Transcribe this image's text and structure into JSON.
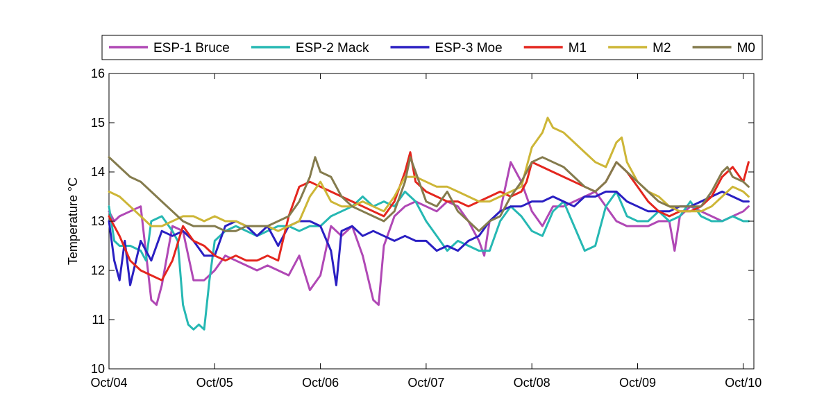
{
  "chart_data": {
    "type": "line",
    "xlabel": "",
    "ylabel": "Temperature °C",
    "ylim": [
      10,
      16
    ],
    "yticks": [
      10,
      11,
      12,
      13,
      14,
      15,
      16
    ],
    "xlim": [
      4,
      10.1
    ],
    "xticks": [
      4,
      5,
      6,
      7,
      8,
      9,
      10
    ],
    "xtick_labels": [
      "Oct/04",
      "Oct/05",
      "Oct/06",
      "Oct/07",
      "Oct/08",
      "Oct/09",
      "Oct/10"
    ],
    "grid": false,
    "legend_position": "top",
    "series": [
      {
        "name": "ESP-1 Bruce",
        "color": "#b048b5",
        "x": [
          4.0,
          4.05,
          4.1,
          4.2,
          4.3,
          4.4,
          4.45,
          4.5,
          4.6,
          4.7,
          4.8,
          4.9,
          5.0,
          5.1,
          5.2,
          5.3,
          5.4,
          5.5,
          5.6,
          5.7,
          5.8,
          5.9,
          6.0,
          6.1,
          6.2,
          6.3,
          6.4,
          6.5,
          6.55,
          6.6,
          6.7,
          6.8,
          6.9,
          7.0,
          7.1,
          7.2,
          7.3,
          7.4,
          7.5,
          7.55,
          7.6,
          7.7,
          7.8,
          7.9,
          8.0,
          8.1,
          8.2,
          8.3,
          8.4,
          8.5,
          8.6,
          8.7,
          8.8,
          8.9,
          9.0,
          9.1,
          9.2,
          9.3,
          9.35,
          9.4,
          9.5,
          9.6,
          9.7,
          9.8,
          9.9,
          10.0,
          10.05
        ],
        "y": [
          13.2,
          13.0,
          13.1,
          13.2,
          13.3,
          11.4,
          11.3,
          11.7,
          12.9,
          12.8,
          11.8,
          11.8,
          12.0,
          12.3,
          12.2,
          12.1,
          12.0,
          12.1,
          12.0,
          11.9,
          12.3,
          11.6,
          11.9,
          12.9,
          12.7,
          12.9,
          12.3,
          11.4,
          11.3,
          12.5,
          13.1,
          13.3,
          13.4,
          13.3,
          13.2,
          13.4,
          13.3,
          13.0,
          12.6,
          12.3,
          13.0,
          13.2,
          14.2,
          13.8,
          13.2,
          12.9,
          13.3,
          13.3,
          13.4,
          13.5,
          13.6,
          13.3,
          13.0,
          12.9,
          12.9,
          12.9,
          13.0,
          13.0,
          12.4,
          13.1,
          13.3,
          13.2,
          13.1,
          13.0,
          13.1,
          13.2,
          13.3
        ]
      },
      {
        "name": "ESP-2 Mack",
        "color": "#26b8b3",
        "x": [
          4.0,
          4.05,
          4.1,
          4.2,
          4.3,
          4.35,
          4.4,
          4.5,
          4.6,
          4.65,
          4.7,
          4.75,
          4.8,
          4.85,
          4.9,
          4.95,
          5.0,
          5.1,
          5.2,
          5.3,
          5.4,
          5.5,
          5.6,
          5.7,
          5.8,
          5.9,
          6.0,
          6.1,
          6.2,
          6.3,
          6.4,
          6.5,
          6.6,
          6.7,
          6.8,
          6.9,
          7.0,
          7.1,
          7.2,
          7.3,
          7.4,
          7.5,
          7.6,
          7.7,
          7.8,
          7.9,
          8.0,
          8.1,
          8.2,
          8.3,
          8.4,
          8.5,
          8.6,
          8.7,
          8.8,
          8.9,
          9.0,
          9.1,
          9.2,
          9.3,
          9.4,
          9.5,
          9.6,
          9.7,
          9.8,
          9.9,
          10.0,
          10.05
        ],
        "y": [
          13.3,
          12.6,
          12.5,
          12.5,
          12.4,
          12.2,
          13.0,
          13.1,
          12.8,
          12.6,
          11.3,
          10.9,
          10.8,
          10.9,
          10.8,
          11.8,
          12.6,
          12.8,
          12.9,
          12.8,
          12.7,
          12.8,
          12.9,
          12.9,
          12.8,
          12.9,
          12.9,
          13.1,
          13.2,
          13.3,
          13.5,
          13.3,
          13.4,
          13.3,
          13.6,
          13.4,
          13.0,
          12.7,
          12.4,
          12.6,
          12.5,
          12.4,
          12.4,
          13.0,
          13.3,
          13.1,
          12.8,
          12.7,
          13.2,
          13.4,
          12.9,
          12.4,
          12.5,
          13.3,
          13.6,
          13.1,
          13.0,
          13.0,
          13.2,
          13.0,
          13.1,
          13.4,
          13.1,
          13.0,
          13.0,
          13.1,
          13.0,
          13.0
        ]
      },
      {
        "name": "ESP-3 Moe",
        "color": "#2a1fc2",
        "x": [
          4.0,
          4.05,
          4.1,
          4.15,
          4.2,
          4.3,
          4.4,
          4.5,
          4.6,
          4.7,
          4.8,
          4.9,
          5.0,
          5.1,
          5.2,
          5.3,
          5.4,
          5.5,
          5.6,
          5.7,
          5.8,
          5.9,
          6.0,
          6.1,
          6.15,
          6.2,
          6.3,
          6.4,
          6.5,
          6.6,
          6.7,
          6.8,
          6.9,
          7.0,
          7.1,
          7.2,
          7.3,
          7.4,
          7.5,
          7.6,
          7.7,
          7.8,
          7.9,
          8.0,
          8.1,
          8.2,
          8.3,
          8.4,
          8.5,
          8.6,
          8.7,
          8.8,
          8.9,
          9.0,
          9.1,
          9.2,
          9.3,
          9.4,
          9.5,
          9.6,
          9.7,
          9.8,
          9.9,
          10.0,
          10.05
        ],
        "y": [
          13.0,
          12.2,
          11.8,
          12.6,
          11.7,
          12.6,
          12.2,
          12.8,
          12.7,
          12.8,
          12.6,
          12.3,
          12.3,
          12.9,
          13.0,
          12.9,
          12.7,
          12.9,
          12.5,
          12.9,
          13.0,
          13.0,
          12.9,
          12.4,
          11.7,
          12.8,
          12.9,
          12.7,
          12.8,
          12.7,
          12.6,
          12.7,
          12.6,
          12.6,
          12.4,
          12.5,
          12.4,
          12.6,
          12.7,
          13.0,
          13.2,
          13.3,
          13.3,
          13.4,
          13.4,
          13.5,
          13.4,
          13.3,
          13.5,
          13.5,
          13.6,
          13.6,
          13.4,
          13.3,
          13.2,
          13.2,
          13.2,
          13.3,
          13.3,
          13.4,
          13.5,
          13.6,
          13.5,
          13.4,
          13.4
        ]
      },
      {
        "name": "M1",
        "color": "#e4261e",
        "x": [
          4.0,
          4.1,
          4.2,
          4.3,
          4.4,
          4.5,
          4.6,
          4.7,
          4.8,
          4.9,
          5.0,
          5.1,
          5.2,
          5.3,
          5.4,
          5.5,
          5.6,
          5.7,
          5.8,
          5.9,
          6.0,
          6.1,
          6.2,
          6.3,
          6.4,
          6.5,
          6.6,
          6.7,
          6.8,
          6.85,
          6.9,
          7.0,
          7.1,
          7.2,
          7.3,
          7.4,
          7.5,
          7.6,
          7.7,
          7.8,
          7.9,
          7.95,
          8.0,
          8.1,
          8.2,
          8.3,
          8.4,
          8.5,
          8.6,
          8.7,
          8.8,
          8.9,
          9.0,
          9.1,
          9.2,
          9.3,
          9.4,
          9.5,
          9.6,
          9.7,
          9.8,
          9.9,
          10.0,
          10.05
        ],
        "y": [
          13.1,
          12.7,
          12.2,
          12.0,
          11.9,
          11.8,
          12.2,
          12.9,
          12.6,
          12.5,
          12.3,
          12.2,
          12.3,
          12.2,
          12.2,
          12.3,
          12.2,
          13.1,
          13.7,
          13.8,
          13.7,
          13.6,
          13.5,
          13.4,
          13.3,
          13.2,
          13.1,
          13.4,
          14.0,
          14.4,
          13.8,
          13.6,
          13.5,
          13.4,
          13.4,
          13.3,
          13.4,
          13.5,
          13.6,
          13.5,
          13.6,
          13.8,
          14.2,
          14.1,
          14.0,
          13.9,
          13.8,
          13.7,
          13.6,
          13.8,
          14.2,
          14.0,
          13.7,
          13.4,
          13.2,
          13.1,
          13.2,
          13.2,
          13.3,
          13.5,
          13.9,
          14.1,
          13.8,
          14.2
        ]
      },
      {
        "name": "M2",
        "color": "#cdb637",
        "x": [
          4.0,
          4.1,
          4.2,
          4.3,
          4.4,
          4.5,
          4.6,
          4.7,
          4.8,
          4.9,
          5.0,
          5.1,
          5.2,
          5.3,
          5.4,
          5.5,
          5.6,
          5.7,
          5.8,
          5.9,
          6.0,
          6.1,
          6.2,
          6.3,
          6.4,
          6.5,
          6.6,
          6.7,
          6.8,
          6.9,
          7.0,
          7.1,
          7.2,
          7.3,
          7.4,
          7.5,
          7.6,
          7.7,
          7.8,
          7.9,
          8.0,
          8.1,
          8.15,
          8.2,
          8.3,
          8.4,
          8.5,
          8.6,
          8.7,
          8.8,
          8.85,
          8.9,
          9.0,
          9.1,
          9.2,
          9.3,
          9.4,
          9.5,
          9.6,
          9.7,
          9.8,
          9.9,
          10.0,
          10.05
        ],
        "y": [
          13.6,
          13.5,
          13.3,
          13.1,
          12.9,
          12.9,
          13.0,
          13.1,
          13.1,
          13.0,
          13.1,
          13.0,
          13.0,
          12.9,
          12.9,
          12.9,
          12.8,
          12.9,
          13.0,
          13.5,
          13.8,
          13.4,
          13.3,
          13.3,
          13.4,
          13.3,
          13.2,
          13.5,
          13.9,
          13.9,
          13.8,
          13.7,
          13.7,
          13.6,
          13.5,
          13.4,
          13.4,
          13.5,
          13.6,
          13.7,
          14.5,
          14.8,
          15.1,
          14.9,
          14.8,
          14.6,
          14.4,
          14.2,
          14.1,
          14.6,
          14.7,
          14.2,
          13.8,
          13.6,
          13.5,
          13.3,
          13.2,
          13.2,
          13.2,
          13.3,
          13.5,
          13.7,
          13.6,
          13.5
        ]
      },
      {
        "name": "M0",
        "color": "#847b4d",
        "x": [
          4.0,
          4.1,
          4.2,
          4.3,
          4.4,
          4.5,
          4.6,
          4.7,
          4.8,
          4.9,
          5.0,
          5.1,
          5.2,
          5.3,
          5.4,
          5.5,
          5.6,
          5.7,
          5.8,
          5.9,
          5.95,
          6.0,
          6.1,
          6.2,
          6.3,
          6.4,
          6.5,
          6.6,
          6.7,
          6.8,
          6.85,
          6.9,
          7.0,
          7.1,
          7.2,
          7.3,
          7.4,
          7.5,
          7.6,
          7.7,
          7.8,
          7.9,
          8.0,
          8.1,
          8.2,
          8.3,
          8.4,
          8.5,
          8.6,
          8.7,
          8.8,
          8.9,
          9.0,
          9.1,
          9.2,
          9.3,
          9.4,
          9.5,
          9.6,
          9.7,
          9.8,
          9.85,
          9.9,
          10.0,
          10.05
        ],
        "y": [
          14.3,
          14.1,
          13.9,
          13.8,
          13.6,
          13.4,
          13.2,
          13.0,
          12.9,
          12.9,
          12.9,
          12.8,
          12.8,
          12.9,
          12.9,
          12.9,
          13.0,
          13.1,
          13.4,
          13.9,
          14.3,
          14.0,
          13.9,
          13.5,
          13.3,
          13.2,
          13.1,
          13.0,
          13.2,
          13.8,
          14.3,
          14.0,
          13.4,
          13.3,
          13.6,
          13.2,
          13.0,
          12.8,
          13.0,
          13.1,
          13.5,
          13.8,
          14.2,
          14.3,
          14.2,
          14.1,
          13.9,
          13.7,
          13.6,
          13.8,
          14.2,
          14.0,
          13.8,
          13.6,
          13.4,
          13.3,
          13.3,
          13.3,
          13.3,
          13.6,
          14.0,
          14.1,
          13.9,
          13.8,
          13.7
        ]
      }
    ]
  }
}
